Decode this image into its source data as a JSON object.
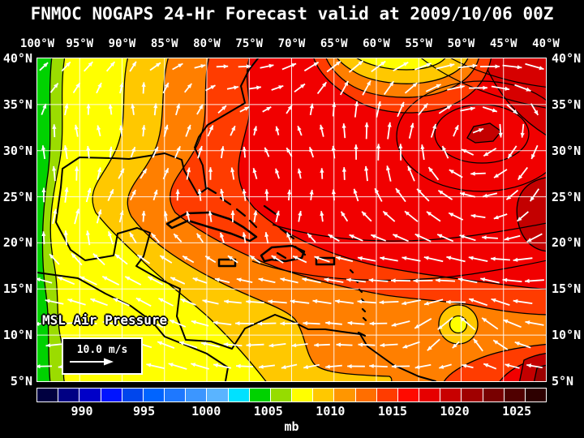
{
  "title": "FNMOC NOGAPS 24-Hr Forecast valid at 2009/10/06 00Z",
  "map": {
    "overlay_label": "MSL Air Pressure",
    "wind_legend_label": "10.0 m/s",
    "lon_ticks": [
      "100°W",
      "95°W",
      "90°W",
      "85°W",
      "80°W",
      "75°W",
      "70°W",
      "65°W",
      "60°W",
      "55°W",
      "50°W",
      "45°W",
      "40°W"
    ],
    "lat_ticks": [
      "40°N",
      "35°N",
      "30°N",
      "25°N",
      "20°N",
      "15°N",
      "10°N",
      "5°N"
    ]
  },
  "colorbar": {
    "unit_label": "mb",
    "tick_labels": [
      "990",
      "995",
      "1000",
      "1005",
      "1010",
      "1015",
      "1020",
      "1025"
    ],
    "segment_colors": [
      "#000040",
      "#000084",
      "#0000C8",
      "#0014FF",
      "#0046EC",
      "#0064FF",
      "#1E78FF",
      "#3C96FF",
      "#5AB4FF",
      "#00E1FF",
      "#00D200",
      "#96DC00",
      "#FFFF00",
      "#FFC800",
      "#FF9600",
      "#FF6E00",
      "#FF3C00",
      "#FF0A00",
      "#E60000",
      "#C80000",
      "#A00000",
      "#780000",
      "#500000",
      "#2D0000"
    ]
  },
  "colors": {
    "background": "#000000",
    "text": "#FFFFFF",
    "grid": "#FFFFFF",
    "coast": "#000000",
    "wind": "#FFFFFF",
    "field": {
      "green": "#00D200",
      "yellow_green": "#9BDC00",
      "yellow": "#FFFF00",
      "gold": "#FFC800",
      "orange": "#FF7F00",
      "orange_red": "#FF3C00",
      "red": "#F10000",
      "red_dark1": "#D60000",
      "red_dark2": "#C30000",
      "red_dark3": "#9A0000"
    }
  }
}
